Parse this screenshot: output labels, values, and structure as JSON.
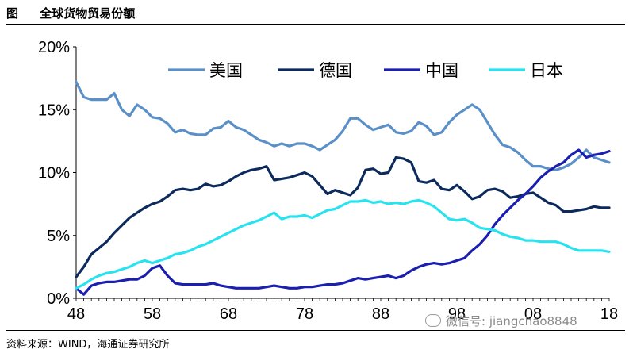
{
  "figure": {
    "label": "图",
    "title": "全球货物贸易份额"
  },
  "source": "资料来源：WIND，海通证券研究所",
  "watermark": "微信号: jiangchao8848",
  "chart_data": {
    "type": "line",
    "title": "全球货物贸易份额",
    "xlabel": "",
    "ylabel": "",
    "x_ticks": [
      "48",
      "58",
      "68",
      "78",
      "88",
      "98",
      "08",
      "18"
    ],
    "y_ticks": [
      "0%",
      "5%",
      "10%",
      "15%",
      "20%"
    ],
    "xlim": [
      1948,
      2018
    ],
    "ylim": [
      0,
      20
    ],
    "grid": false,
    "legend_position": "top",
    "series": [
      {
        "name": "美国",
        "color": "#5b8fc7",
        "x": [
          1948,
          1949,
          1950,
          1951,
          1952,
          1953,
          1954,
          1955,
          1956,
          1957,
          1958,
          1959,
          1960,
          1961,
          1962,
          1963,
          1964,
          1965,
          1966,
          1967,
          1968,
          1969,
          1970,
          1971,
          1972,
          1973,
          1974,
          1975,
          1976,
          1977,
          1978,
          1979,
          1980,
          1981,
          1982,
          1983,
          1984,
          1985,
          1986,
          1987,
          1988,
          1989,
          1990,
          1991,
          1992,
          1993,
          1994,
          1995,
          1996,
          1997,
          1998,
          1999,
          2000,
          2001,
          2002,
          2003,
          2004,
          2005,
          2006,
          2007,
          2008,
          2009,
          2010,
          2011,
          2012,
          2013,
          2014,
          2015,
          2016,
          2017,
          2018
        ],
        "values": [
          17.2,
          16.0,
          15.8,
          15.8,
          15.8,
          16.3,
          15.0,
          14.5,
          15.4,
          15.0,
          14.4,
          14.3,
          13.9,
          13.2,
          13.4,
          13.1,
          13.0,
          13.0,
          13.5,
          13.6,
          14.1,
          13.6,
          13.4,
          13.0,
          12.6,
          12.4,
          12.1,
          12.3,
          12.1,
          12.3,
          12.3,
          12.1,
          11.8,
          12.2,
          12.6,
          13.3,
          14.3,
          14.3,
          13.8,
          13.4,
          13.6,
          13.8,
          13.2,
          13.1,
          13.3,
          14.0,
          13.7,
          13.0,
          13.2,
          14.0,
          14.6,
          15.0,
          15.4,
          15.0,
          14.0,
          13.0,
          12.2,
          12.0,
          11.6,
          11.0,
          10.5,
          10.5,
          10.3,
          10.2,
          10.4,
          10.7,
          11.2,
          11.8,
          11.2,
          11.0,
          10.8
        ]
      },
      {
        "name": "德国",
        "color": "#0c2a5c",
        "x": [
          1948,
          1949,
          1950,
          1951,
          1952,
          1953,
          1954,
          1955,
          1956,
          1957,
          1958,
          1959,
          1960,
          1961,
          1962,
          1963,
          1964,
          1965,
          1966,
          1967,
          1968,
          1969,
          1970,
          1971,
          1972,
          1973,
          1974,
          1975,
          1976,
          1977,
          1978,
          1979,
          1980,
          1981,
          1982,
          1983,
          1984,
          1985,
          1986,
          1987,
          1988,
          1989,
          1990,
          1991,
          1992,
          1993,
          1994,
          1995,
          1996,
          1997,
          1998,
          1999,
          2000,
          2001,
          2002,
          2003,
          2004,
          2005,
          2006,
          2007,
          2008,
          2009,
          2010,
          2011,
          2012,
          2013,
          2014,
          2015,
          2016,
          2017,
          2018
        ],
        "values": [
          1.7,
          2.5,
          3.5,
          4.0,
          4.5,
          5.2,
          5.8,
          6.4,
          6.8,
          7.2,
          7.5,
          7.7,
          8.1,
          8.6,
          8.7,
          8.6,
          8.7,
          9.1,
          8.9,
          9.0,
          9.3,
          9.7,
          10.0,
          10.2,
          10.3,
          10.5,
          9.4,
          9.5,
          9.6,
          9.8,
          10.0,
          9.7,
          9.0,
          8.3,
          8.6,
          8.4,
          8.2,
          8.8,
          10.2,
          10.3,
          9.9,
          10.0,
          11.2,
          11.1,
          10.8,
          9.3,
          9.2,
          9.4,
          8.7,
          8.6,
          9.0,
          8.5,
          7.9,
          8.1,
          8.6,
          8.7,
          8.5,
          8.0,
          8.1,
          8.3,
          8.4,
          8.0,
          7.6,
          7.4,
          6.9,
          6.9,
          7.0,
          7.1,
          7.3,
          7.2,
          7.2
        ]
      },
      {
        "name": "中国",
        "color": "#1b1fb0",
        "x": [
          1948,
          1949,
          1950,
          1951,
          1952,
          1953,
          1954,
          1955,
          1956,
          1957,
          1958,
          1959,
          1960,
          1961,
          1962,
          1963,
          1964,
          1965,
          1966,
          1967,
          1968,
          1969,
          1970,
          1971,
          1972,
          1973,
          1974,
          1975,
          1976,
          1977,
          1978,
          1979,
          1980,
          1981,
          1982,
          1983,
          1984,
          1985,
          1986,
          1987,
          1988,
          1989,
          1990,
          1991,
          1992,
          1993,
          1994,
          1995,
          1996,
          1997,
          1998,
          1999,
          2000,
          2001,
          2002,
          2003,
          2004,
          2005,
          2006,
          2007,
          2008,
          2009,
          2010,
          2011,
          2012,
          2013,
          2014,
          2015,
          2016,
          2017,
          2018
        ],
        "values": [
          0.8,
          0.3,
          1.0,
          1.2,
          1.3,
          1.3,
          1.4,
          1.5,
          1.5,
          1.8,
          2.4,
          2.6,
          1.8,
          1.2,
          1.1,
          1.1,
          1.1,
          1.1,
          1.2,
          1.0,
          0.9,
          0.8,
          0.8,
          0.8,
          0.8,
          0.9,
          1.0,
          0.9,
          0.8,
          0.8,
          0.9,
          0.9,
          1.0,
          1.1,
          1.1,
          1.2,
          1.4,
          1.6,
          1.5,
          1.6,
          1.7,
          1.8,
          1.6,
          1.8,
          2.2,
          2.5,
          2.7,
          2.8,
          2.7,
          2.8,
          3.0,
          3.2,
          3.8,
          4.3,
          5.0,
          5.9,
          6.6,
          7.2,
          7.8,
          8.3,
          8.9,
          9.6,
          10.1,
          10.5,
          10.8,
          11.4,
          11.8,
          11.2,
          11.4,
          11.5,
          11.7
        ]
      },
      {
        "name": "日本",
        "color": "#27e3f0",
        "x": [
          1948,
          1949,
          1950,
          1951,
          1952,
          1953,
          1954,
          1955,
          1956,
          1957,
          1958,
          1959,
          1960,
          1961,
          1962,
          1963,
          1964,
          1965,
          1966,
          1967,
          1968,
          1969,
          1970,
          1971,
          1972,
          1973,
          1974,
          1975,
          1976,
          1977,
          1978,
          1979,
          1980,
          1981,
          1982,
          1983,
          1984,
          1985,
          1986,
          1987,
          1988,
          1989,
          1990,
          1991,
          1992,
          1993,
          1994,
          1995,
          1996,
          1997,
          1998,
          1999,
          2000,
          2001,
          2002,
          2003,
          2004,
          2005,
          2006,
          2007,
          2008,
          2009,
          2010,
          2011,
          2012,
          2013,
          2014,
          2015,
          2016,
          2017,
          2018
        ],
        "values": [
          0.8,
          1.1,
          1.5,
          1.8,
          2.0,
          2.1,
          2.3,
          2.5,
          2.8,
          3.0,
          2.8,
          3.0,
          3.2,
          3.5,
          3.6,
          3.8,
          4.1,
          4.3,
          4.6,
          4.9,
          5.2,
          5.5,
          5.8,
          6.0,
          6.2,
          6.5,
          6.8,
          6.3,
          6.5,
          6.5,
          6.6,
          6.4,
          6.7,
          7.0,
          7.1,
          7.4,
          7.7,
          7.7,
          7.8,
          7.6,
          7.7,
          7.5,
          7.6,
          7.5,
          7.7,
          7.8,
          7.6,
          7.3,
          6.8,
          6.3,
          6.2,
          6.3,
          6.0,
          5.6,
          5.5,
          5.4,
          5.1,
          4.9,
          4.8,
          4.6,
          4.6,
          4.5,
          4.5,
          4.5,
          4.3,
          4.0,
          3.8,
          3.8,
          3.8,
          3.8,
          3.7
        ]
      }
    ]
  }
}
